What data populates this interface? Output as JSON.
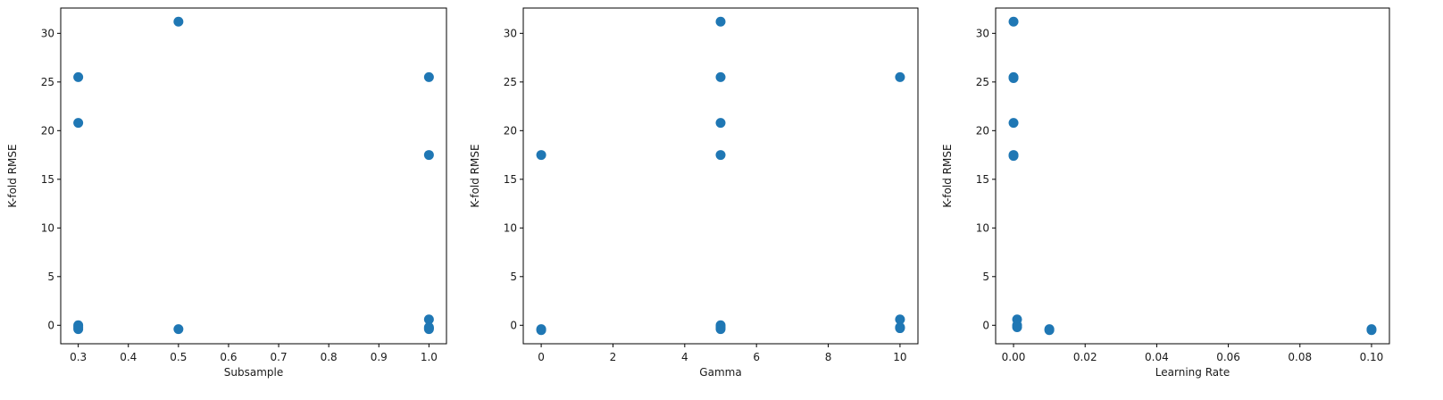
{
  "chart_data": [
    {
      "type": "scatter",
      "xlabel": "Subsample",
      "ylabel": "K-fold RMSE",
      "xlim": [
        0.265,
        1.035
      ],
      "ylim": [
        -1.9,
        32.6
      ],
      "xticks": [
        0.3,
        0.4,
        0.5,
        0.6,
        0.7,
        0.8,
        0.9,
        1.0
      ],
      "xtick_labels": [
        "0.3",
        "0.4",
        "0.5",
        "0.6",
        "0.7",
        "0.8",
        "0.9",
        "1.0"
      ],
      "yticks": [
        0,
        5,
        10,
        15,
        20,
        25,
        30
      ],
      "ytick_labels": [
        "0",
        "5",
        "10",
        "15",
        "20",
        "25",
        "30"
      ],
      "color": "#1f77b4",
      "points": [
        {
          "x": 0.3,
          "y": 25.5
        },
        {
          "x": 0.3,
          "y": 20.8
        },
        {
          "x": 0.3,
          "y": 0.0
        },
        {
          "x": 0.3,
          "y": -0.2
        },
        {
          "x": 0.3,
          "y": -0.4
        },
        {
          "x": 0.5,
          "y": 31.2
        },
        {
          "x": 0.5,
          "y": -0.4
        },
        {
          "x": 1.0,
          "y": 25.5
        },
        {
          "x": 1.0,
          "y": 17.5
        },
        {
          "x": 1.0,
          "y": 0.6
        },
        {
          "x": 1.0,
          "y": -0.2
        },
        {
          "x": 1.0,
          "y": -0.3
        },
        {
          "x": 1.0,
          "y": -0.4
        }
      ]
    },
    {
      "type": "scatter",
      "xlabel": "Gamma",
      "ylabel": "K-fold RMSE",
      "xlim": [
        -0.5,
        10.5
      ],
      "ylim": [
        -1.9,
        32.6
      ],
      "xticks": [
        0,
        2,
        4,
        6,
        8,
        10
      ],
      "xtick_labels": [
        "0",
        "2",
        "4",
        "6",
        "8",
        "10"
      ],
      "yticks": [
        0,
        5,
        10,
        15,
        20,
        25,
        30
      ],
      "ytick_labels": [
        "0",
        "5",
        "10",
        "15",
        "20",
        "25",
        "30"
      ],
      "color": "#1f77b4",
      "points": [
        {
          "x": 0,
          "y": 17.5
        },
        {
          "x": 0,
          "y": -0.4
        },
        {
          "x": 0,
          "y": -0.5
        },
        {
          "x": 5,
          "y": 31.2
        },
        {
          "x": 5,
          "y": 25.5
        },
        {
          "x": 5,
          "y": 20.8
        },
        {
          "x": 5,
          "y": 17.5
        },
        {
          "x": 5,
          "y": 0.0
        },
        {
          "x": 5,
          "y": -0.2
        },
        {
          "x": 5,
          "y": -0.4
        },
        {
          "x": 10,
          "y": 25.5
        },
        {
          "x": 10,
          "y": 0.6
        },
        {
          "x": 10,
          "y": -0.2
        },
        {
          "x": 10,
          "y": -0.3
        }
      ]
    },
    {
      "type": "scatter",
      "xlabel": "Learning Rate",
      "ylabel": "K-fold RMSE",
      "xlim": [
        -0.005,
        0.105
      ],
      "ylim": [
        -1.9,
        32.6
      ],
      "xticks": [
        0.0,
        0.02,
        0.04,
        0.06,
        0.08,
        0.1
      ],
      "xtick_labels": [
        "0.00",
        "0.02",
        "0.04",
        "0.06",
        "0.08",
        "0.10"
      ],
      "yticks": [
        0,
        5,
        10,
        15,
        20,
        25,
        30
      ],
      "ytick_labels": [
        "0",
        "5",
        "10",
        "15",
        "20",
        "25",
        "30"
      ],
      "color": "#1f77b4",
      "points": [
        {
          "x": 0.0,
          "y": 31.2
        },
        {
          "x": 0.0,
          "y": 25.5
        },
        {
          "x": 0.0,
          "y": 25.4
        },
        {
          "x": 0.0,
          "y": 20.8
        },
        {
          "x": 0.0,
          "y": 17.5
        },
        {
          "x": 0.0,
          "y": 17.4
        },
        {
          "x": 0.001,
          "y": 0.6
        },
        {
          "x": 0.001,
          "y": 0.0
        },
        {
          "x": 0.001,
          "y": -0.2
        },
        {
          "x": 0.01,
          "y": -0.4
        },
        {
          "x": 0.01,
          "y": -0.5
        },
        {
          "x": 0.1,
          "y": -0.4
        },
        {
          "x": 0.1,
          "y": -0.5
        }
      ]
    }
  ]
}
